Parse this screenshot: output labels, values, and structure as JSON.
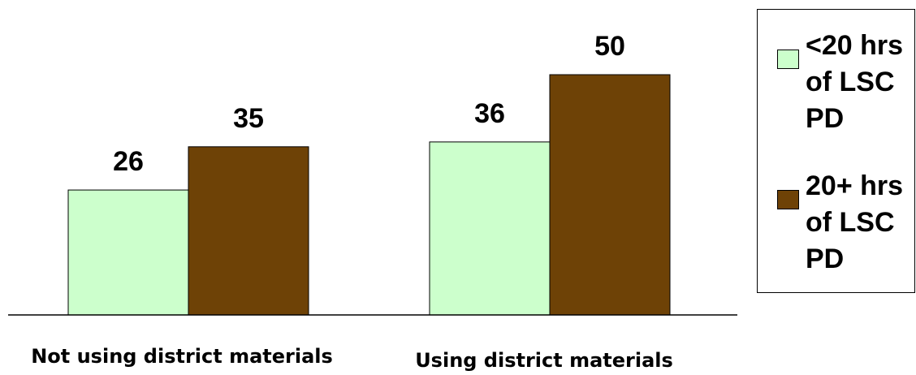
{
  "chart_data": {
    "type": "bar",
    "categories": [
      "Not using district materials",
      "Using district materials"
    ],
    "series": [
      {
        "name": "<20 hrs of LSC PD",
        "values": [
          26,
          36
        ],
        "color": "#ccffcc"
      },
      {
        "name": "20+ hrs of LSC PD",
        "values": [
          35,
          50
        ],
        "color": "#6e4206"
      }
    ],
    "ylim": [
      0,
      60
    ],
    "grid": false,
    "legend_position": "right",
    "data_labels": true
  }
}
